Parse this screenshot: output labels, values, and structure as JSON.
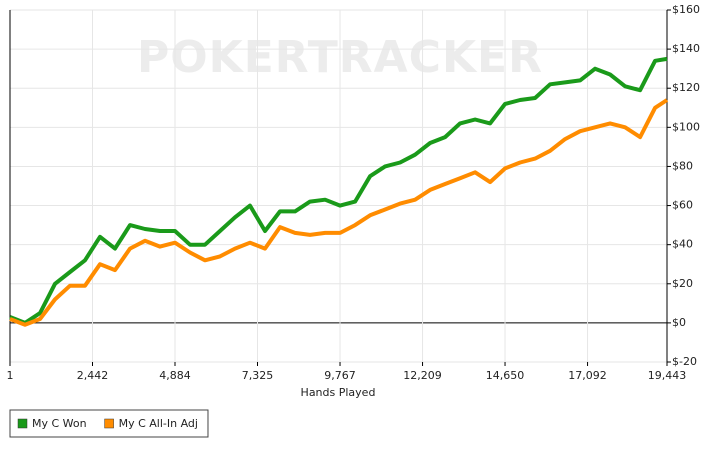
{
  "chart_data": {
    "type": "line",
    "watermark": "POKERTRACKER",
    "x_label": "Hands Played",
    "x": [
      1,
      444,
      888,
      1332,
      1776,
      2220,
      2664,
      3108,
      3552,
      3996,
      4440,
      4884,
      5328,
      5772,
      6216,
      6660,
      7104,
      7548,
      7992,
      8436,
      8880,
      9324,
      9768,
      10212,
      10656,
      11100,
      11544,
      11988,
      12432,
      12876,
      13320,
      13764,
      14208,
      14652,
      15096,
      15540,
      15984,
      16428,
      16872,
      17316,
      17760,
      18204,
      18648,
      19092,
      19443
    ],
    "series": [
      {
        "name": "My C Won",
        "color": "#1a9a1a",
        "values": [
          3,
          0,
          5,
          20,
          26,
          32,
          44,
          38,
          50,
          48,
          47,
          47,
          40,
          40,
          47,
          54,
          60,
          47,
          57,
          57,
          62,
          63,
          60,
          62,
          75,
          80,
          82,
          86,
          92,
          95,
          102,
          104,
          102,
          112,
          114,
          115,
          122,
          123,
          124,
          130,
          127,
          121,
          119,
          134,
          135
        ]
      },
      {
        "name": "My C All-In Adj",
        "color": "#ff8c00",
        "values": [
          2,
          -1,
          2,
          12,
          19,
          19,
          30,
          27,
          38,
          42,
          39,
          41,
          36,
          32,
          34,
          38,
          41,
          38,
          49,
          46,
          45,
          46,
          46,
          50,
          55,
          58,
          61,
          63,
          68,
          71,
          74,
          77,
          72,
          79,
          82,
          84,
          88,
          94,
          98,
          100,
          102,
          100,
          95,
          110,
          114
        ]
      }
    ],
    "xlim": [
      1,
      19443
    ],
    "xticks": [
      1,
      {
        "value": 2442,
        "label": "2,442"
      },
      {
        "value": 4884,
        "label": "4,884"
      },
      {
        "value": 7325,
        "label": "7,325"
      },
      {
        "value": 9767,
        "label": "9,767"
      },
      {
        "value": 12209,
        "label": "12,209"
      },
      {
        "value": 14650,
        "label": "14,650"
      },
      {
        "value": 17092,
        "label": "17,092"
      },
      {
        "value": 19443,
        "label": "19,443"
      }
    ],
    "ylim": [
      -20,
      160
    ],
    "yticks": [
      {
        "value": -20,
        "label": "$-20"
      },
      {
        "value": 0,
        "label": "$0"
      },
      {
        "value": 20,
        "label": "$20"
      },
      {
        "value": 40,
        "label": "$40"
      },
      {
        "value": 60,
        "label": "$60"
      },
      {
        "value": 80,
        "label": "$80"
      },
      {
        "value": 100,
        "label": "$100"
      },
      {
        "value": 120,
        "label": "$120"
      },
      {
        "value": 140,
        "label": "$140"
      },
      {
        "value": 160,
        "label": "$160"
      }
    ],
    "grid": true,
    "legend": "bottom-left"
  }
}
